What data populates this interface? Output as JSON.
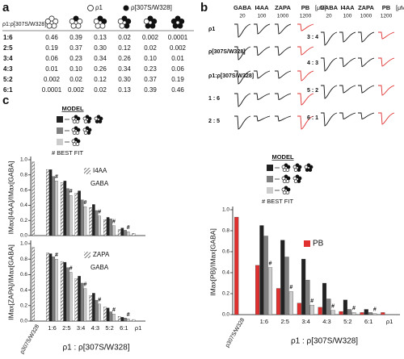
{
  "panel_labels": [
    "a",
    "b",
    "c"
  ],
  "panel_a": {
    "legend": [
      "ρ1",
      "ρ[307S/W328]"
    ],
    "row_header": "ρ1:ρ[307S/W328]",
    "rows": [
      [
        "1:6",
        "0.46",
        "0.39",
        "0.13",
        "0.02",
        "0.002",
        "0.0001"
      ],
      [
        "2:5",
        "0.19",
        "0.37",
        "0.30",
        "0.12",
        "0.02",
        "0.002"
      ],
      [
        "3:4",
        "0.06",
        "0.23",
        "0.34",
        "0.26",
        "0.10",
        "0.01"
      ],
      [
        "4:3",
        "0.01",
        "0.10",
        "0.26",
        "0.34",
        "0.23",
        "0.06"
      ],
      [
        "5:2",
        "0.002",
        "0.02",
        "0.12",
        "0.30",
        "0.37",
        "0.19"
      ],
      [
        "6:1",
        "0.0001",
        "0.002",
        "0.02",
        "0.13",
        "0.39",
        "0.46"
      ]
    ]
  },
  "panel_b": {
    "drugs": [
      "GABA",
      "I4AA",
      "ZAPA",
      "PB"
    ],
    "unit": "[μM]",
    "concentrations": [
      "20",
      "100",
      "1000",
      "1200"
    ],
    "rows_left": [
      "ρ1",
      "ρ[307S/W328]",
      "ρ1:ρ[307S/W328]",
      "1 : 6",
      "2 : 5"
    ],
    "rows_right": [
      "3 : 4",
      "4 : 3",
      "5 : 2",
      "6 : 1"
    ]
  },
  "chart_data": [
    {
      "type": "bar",
      "ylabel": "IMax[I4AA]/IMax[GABA]",
      "model_title": "MODEL",
      "best_fit": "# BEST FIT",
      "best_fit_mark": "#",
      "structure_label": "GABA",
      "ylim": [
        0,
        1
      ],
      "yticks": [
        {
          "value": 0,
          "label": "0.0"
        },
        {
          "value": 0.2,
          "label": "0.2"
        },
        {
          "value": 0.4,
          "label": "0.4"
        },
        {
          "value": 0.6,
          "label": "0.6"
        },
        {
          "value": 0.8,
          "label": "0.8"
        },
        {
          "value": 1,
          "label": "1.0"
        }
      ],
      "series": [
        {
          "name": "I4AA",
          "color": "#888888",
          "pattern": "hatch",
          "values": [
            0.97,
            0.87,
            0.7,
            0.56,
            0.37,
            0.21,
            0.08,
            0.03
          ]
        },
        {
          "color": "#222222",
          "values": [
            null,
            0.87,
            0.72,
            0.59,
            0.41,
            0.24,
            0.1,
            null
          ]
        },
        {
          "color": "#808080",
          "values": [
            null,
            0.78,
            0.62,
            0.47,
            0.33,
            0.22,
            0.07,
            null
          ]
        },
        {
          "color": "#cccccc",
          "values": [
            null,
            0.72,
            0.53,
            0.38,
            0.26,
            0.13,
            0.05,
            null
          ]
        }
      ]
    },
    {
      "type": "bar",
      "ylabel": "IMax[ZAPA]/IMax[GABA]",
      "xlabel": "ρ1 : ρ[307S/W328]",
      "best_fit_mark": "#",
      "structure_label": "GABA",
      "categories": [
        "ρ307S/W328",
        "1:6",
        "2:5",
        "3:4",
        "4:3",
        "5:2",
        "6:1",
        "ρ1"
      ],
      "ylim": [
        0,
        1
      ],
      "yticks": [
        {
          "value": 0,
          "label": "0.0"
        },
        {
          "value": 0.2,
          "label": "0.2"
        },
        {
          "value": 0.4,
          "label": "0.4"
        },
        {
          "value": 0.6,
          "label": "0.6"
        },
        {
          "value": 0.8,
          "label": "0.8"
        },
        {
          "value": 1,
          "label": "1.0"
        }
      ],
      "series": [
        {
          "name": "ZAPA",
          "color": "#888888",
          "pattern": "hatch",
          "values": [
            0.95,
            0.88,
            0.77,
            0.55,
            0.33,
            0.18,
            0.06,
            0.02
          ]
        },
        {
          "color": "#222222",
          "values": [
            null,
            0.87,
            0.76,
            0.58,
            0.36,
            0.17,
            0.05,
            null
          ]
        },
        {
          "color": "#808080",
          "values": [
            null,
            0.83,
            0.69,
            0.49,
            0.27,
            0.12,
            0.04,
            null
          ]
        },
        {
          "color": "#cccccc",
          "values": [
            null,
            0.8,
            0.63,
            0.42,
            0.22,
            0.09,
            0.03,
            null
          ]
        }
      ]
    },
    {
      "type": "bar",
      "ylabel": "IMax[PB]/IMax[GABA]",
      "xlabel": "ρ1 : ρ[307S/W328]",
      "model_title": "MODEL",
      "best_fit": "# BEST FIT",
      "best_fit_mark": "#",
      "categories": [
        "ρ307S/W328",
        "1:6",
        "2:5",
        "3:4",
        "4:3",
        "5:2",
        "6:1",
        "ρ1"
      ],
      "ylim": [
        0,
        1
      ],
      "yticks": [
        {
          "value": 0,
          "label": "0.0"
        },
        {
          "value": 0.2,
          "label": "0.2"
        },
        {
          "value": 0.4,
          "label": "0.4"
        },
        {
          "value": 0.6,
          "label": "0.6"
        },
        {
          "value": 0.8,
          "label": "0.8"
        },
        {
          "value": 1,
          "label": "1.0"
        }
      ],
      "series": [
        {
          "name": "PB",
          "color": "#e03030",
          "values": [
            0.93,
            0.47,
            0.25,
            0.11,
            0.07,
            0.03,
            0.02,
            0.02
          ]
        },
        {
          "color": "#222222",
          "values": [
            null,
            0.85,
            0.71,
            0.53,
            0.3,
            0.14,
            0.05,
            null
          ]
        },
        {
          "color": "#808080",
          "values": [
            null,
            0.75,
            0.55,
            0.33,
            0.15,
            0.05,
            0.02,
            null
          ]
        },
        {
          "color": "#cccccc",
          "values": [
            null,
            0.45,
            0.22,
            0.09,
            0.04,
            0.02,
            0.01,
            null
          ]
        }
      ]
    }
  ]
}
